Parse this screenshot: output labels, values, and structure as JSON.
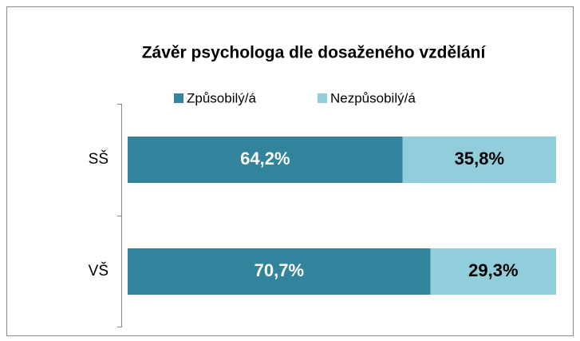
{
  "chart_data": {
    "type": "stacked-bar-horizontal",
    "title": "Závěr psychologa dle dosaženého vzdělání",
    "categories": [
      "SŠ",
      "VŠ"
    ],
    "xlim": [
      0,
      100
    ],
    "series": [
      {
        "name": "Způsobilý/á",
        "color": "#31849b",
        "label_color": "#ffffff",
        "values": [
          64.2,
          70.7
        ],
        "value_labels": [
          "64,2%",
          "70,7%"
        ]
      },
      {
        "name": "Nezpůsobilý/á",
        "color": "#92cddc",
        "label_color": "#000000",
        "values": [
          35.8,
          29.3
        ],
        "value_labels": [
          "35,8%",
          "29,3%"
        ]
      }
    ],
    "legend": "top"
  }
}
